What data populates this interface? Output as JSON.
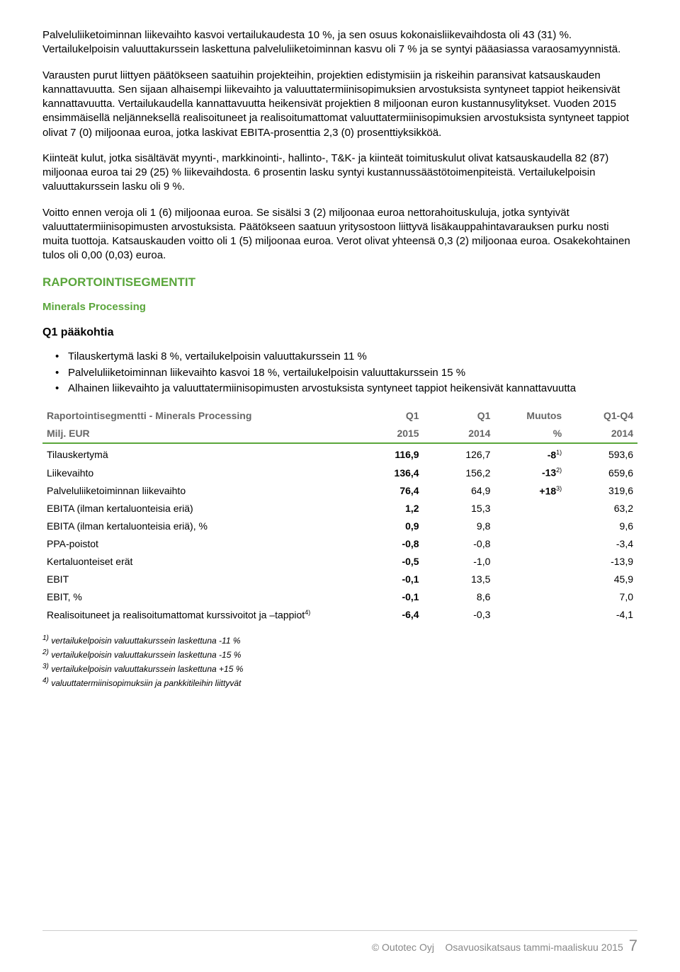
{
  "colors": {
    "section_heading": "#5aa63b",
    "sub_heading": "#5aa63b",
    "table_header_text": "#666666",
    "table_rule": "#5aa63b",
    "footer_text": "#888888",
    "body_text": "#000000"
  },
  "paragraphs": {
    "p1": "Palveluliiketoiminnan liikevaihto kasvoi vertailukaudesta 10 %, ja sen osuus kokonaisliikevaihdosta oli 43 (31) %. Vertailukelpoisin valuuttakurssein laskettuna palveluliiketoiminnan kasvu oli 7 % ja se syntyi pääasiassa varaosamyynnistä.",
    "p2": "Varausten purut liittyen päätökseen saatuihin projekteihin, projektien edistymisiin ja riskeihin paransivat katsauskauden kannattavuutta. Sen sijaan alhaisempi liikevaihto ja valuuttatermiinisopimuksien arvostuksista syntyneet tappiot heikensivät kannattavuutta. Vertailukaudella kannattavuutta heikensivät projektien 8 miljoonan euron kustannusylitykset. Vuoden 2015 ensimmäisellä neljänneksellä realisoituneet ja realisoitumattomat valuuttatermiinisopimuksien arvostuksista syntyneet tappiot olivat 7 (0) miljoonaa euroa, jotka laskivat EBITA-prosenttia 2,3 (0) prosenttiyksikköä.",
    "p3": "Kiinteät kulut, jotka sisältävät myynti-, markkinointi-, hallinto-, T&K- ja kiinteät toimituskulut olivat katsauskaudella 82 (87) miljoonaa euroa tai 29 (25) % liikevaihdosta. 6 prosentin lasku syntyi kustannussäästötoimenpiteistä. Vertailukelpoisin valuuttakurssein lasku oli 9 %.",
    "p4": "Voitto ennen veroja oli 1 (6) miljoonaa euroa. Se sisälsi 3 (2) miljoonaa euroa nettorahoituskuluja, jotka syntyivät valuuttatermiinisopimusten arvostuksista. Päätökseen saatuun yritysostoon liittyvä lisäkauppahintavarauksen purku nosti muita tuottoja. Katsauskauden voitto oli 1 (5) miljoonaa euroa. Verot olivat yhteensä 0,3 (2) miljoonaa euroa. Osakekohtainen tulos oli 0,00 (0,03) euroa."
  },
  "headings": {
    "segments": "RAPORTOINTISEGMENTIT",
    "minerals": "Minerals Processing",
    "q1": "Q1 pääkohtia"
  },
  "bullets": [
    "Tilauskertymä laski 8 %, vertailukelpoisin valuuttakurssein 11 %",
    "Palveluliiketoiminnan liikevaihto kasvoi 18 %, vertailukelpoisin valuuttakurssein 15 %",
    "Alhainen liikevaihto ja valuuttatermiinisopimusten arvostuksista syntyneet tappiot heikensivät kannattavuutta"
  ],
  "table": {
    "header1": [
      "Raportointisegmentti - Minerals Processing",
      "Q1",
      "Q1",
      "Muutos",
      "Q1-Q4"
    ],
    "header2": [
      "Milj. EUR",
      "2015",
      "2014",
      "%",
      "2014"
    ],
    "rows": [
      {
        "label": "Tilauskertymä",
        "c1": "116,9",
        "c2": "126,7",
        "c3": "-8",
        "sup": "1)",
        "c4": "593,6"
      },
      {
        "label": "Liikevaihto",
        "c1": "136,4",
        "c2": "156,2",
        "c3": "-13",
        "sup": "2)",
        "c4": "659,6"
      },
      {
        "label": "Palveluliiketoiminnan liikevaihto",
        "c1": "76,4",
        "c2": "64,9",
        "c3": "+18",
        "sup": "3)",
        "c4": "319,6"
      },
      {
        "label": "EBITA (ilman kertaluonteisia eriä)",
        "c1": "1,2",
        "c2": "15,3",
        "c3": "",
        "sup": "",
        "c4": "63,2"
      },
      {
        "label": "EBITA (ilman kertaluonteisia eriä), %",
        "c1": "0,9",
        "c2": "9,8",
        "c3": "",
        "sup": "",
        "c4": "9,6"
      },
      {
        "label": "PPA-poistot",
        "c1": "-0,8",
        "c2": "-0,8",
        "c3": "",
        "sup": "",
        "c4": "-3,4"
      },
      {
        "label": "Kertaluonteiset erät",
        "c1": "-0,5",
        "c2": "-1,0",
        "c3": "",
        "sup": "",
        "c4": "-13,9"
      },
      {
        "label": "EBIT",
        "c1": "-0,1",
        "c2": "13,5",
        "c3": "",
        "sup": "",
        "c4": "45,9"
      },
      {
        "label": "EBIT, %",
        "c1": "-0,1",
        "c2": "8,6",
        "c3": "",
        "sup": "",
        "c4": "7,0"
      },
      {
        "label_html": "Realisoituneet ja realisoitumattomat kurssivoitot ja –tappiot<sup>4)</sup>",
        "c1": "-6,4",
        "c2": "-0,3",
        "c3": "",
        "sup": "",
        "c4": "-4,1"
      }
    ]
  },
  "footnotes": [
    "1) vertailukelpoisin valuuttakurssein laskettuna -11 %",
    "2) vertailukelpoisin valuuttakurssein laskettuna -15 %",
    "3) vertailukelpoisin valuuttakurssein laskettuna +15 %",
    "4) valuuttatermiinisopimuksiin ja pankkitileihin liittyvät"
  ],
  "footer": {
    "left": "© Outotec Oyj",
    "right": "Osavuosikatsaus tammi-maaliskuu 2015",
    "page": "7"
  }
}
